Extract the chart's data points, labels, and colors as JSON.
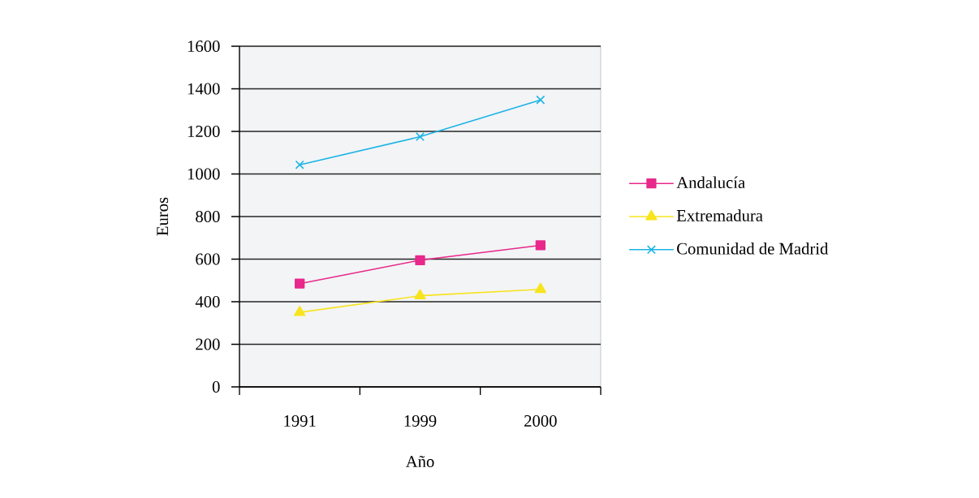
{
  "chart_data": {
    "type": "line",
    "xlabel": "Año",
    "ylabel": "Euros",
    "categories": [
      "1991",
      "1999",
      "2000"
    ],
    "ylim": [
      0,
      1600
    ],
    "yticks": [
      0,
      200,
      400,
      600,
      800,
      1000,
      1200,
      1400,
      1600
    ],
    "grid": "y",
    "legend": "right",
    "series": [
      {
        "name": "Andalucía",
        "color": "#e8288a",
        "marker": "square",
        "values": [
          485,
          595,
          665
        ]
      },
      {
        "name": "Extremadura",
        "color": "#f7e41c",
        "marker": "triangle",
        "values": [
          350,
          428,
          458
        ]
      },
      {
        "name": "Comunidad de Madrid",
        "color": "#1ab4e6",
        "marker": "cross",
        "values": [
          1043,
          1175,
          1348
        ]
      }
    ]
  }
}
